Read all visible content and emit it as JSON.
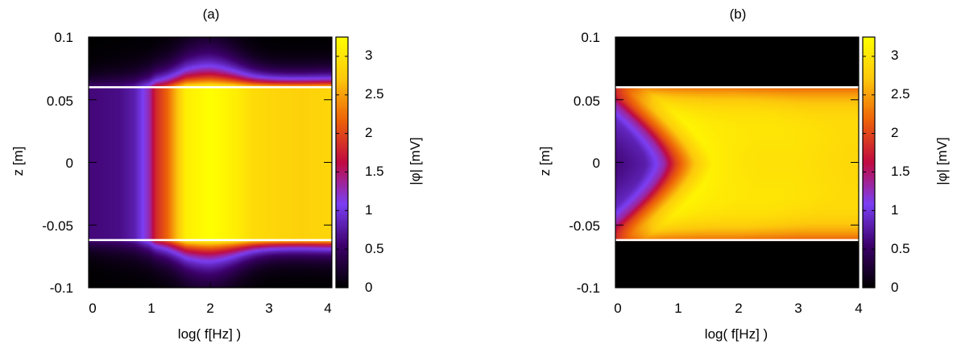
{
  "chart_data": [
    {
      "type": "heatmap",
      "title": "(a)",
      "xlabel": "log( f[Hz] )",
      "ylabel": "z [m]",
      "colorbar_label": "|φ| [mV]",
      "xlim": [
        0,
        4
      ],
      "ylim": [
        -0.1,
        0.1
      ],
      "clim": [
        0,
        3.25
      ],
      "x_ticks": [
        0,
        1,
        2,
        3,
        4
      ],
      "x_tick_labels": [
        "0",
        "1",
        "2",
        "3",
        "4"
      ],
      "y_ticks": [
        0.1,
        0.05,
        0,
        -0.05,
        -0.1
      ],
      "y_tick_labels": [
        "0.1",
        "0.05",
        "0",
        "-0.05",
        "-0.1"
      ],
      "colorbar_ticks": [
        3,
        2.5,
        2,
        1.5,
        1,
        0.5,
        0
      ],
      "colorbar_tick_labels": [
        "3",
        "2.5",
        "2",
        "1.5",
        "1",
        "0.5",
        "0"
      ],
      "boundary_lines_z": [
        0.06,
        -0.062
      ],
      "profile_inside_x": [
        0,
        0.5,
        0.75,
        1.0,
        1.1,
        1.3,
        1.6,
        2.0,
        2.4,
        2.7,
        3.0,
        3.5,
        4.0
      ],
      "profile_inside_values": [
        0.6,
        0.65,
        0.8,
        1.3,
        1.8,
        2.2,
        3.1,
        3.25,
        3.1,
        2.9,
        2.85,
        2.8,
        2.85
      ],
      "colormap": [
        "#000000",
        "#3c006a",
        "#7b3ff5",
        "#c10a41",
        "#ed6109",
        "#fdc80c",
        "#ffff00"
      ]
    },
    {
      "type": "heatmap",
      "title": "(b)",
      "xlabel": "log( f[Hz] )",
      "ylabel": "z [m]",
      "colorbar_label": "|φ| [mV]",
      "xlim": [
        0,
        4
      ],
      "ylim": [
        -0.1,
        0.1
      ],
      "clim": [
        0,
        3.25
      ],
      "x_ticks": [
        0,
        1,
        2,
        3,
        4
      ],
      "x_tick_labels": [
        "0",
        "1",
        "2",
        "3",
        "4"
      ],
      "y_ticks": [
        0.1,
        0.05,
        0,
        -0.05,
        -0.1
      ],
      "y_tick_labels": [
        "0.1",
        "0.05",
        "0",
        "-0.05",
        "-0.1"
      ],
      "colorbar_ticks": [
        3,
        2.5,
        2,
        1.5,
        1,
        0.5,
        0
      ],
      "colorbar_tick_labels": [
        "3",
        "2.5",
        "2",
        "1.5",
        "1",
        "0.5",
        "0"
      ],
      "boundary_lines_z": [
        0.06,
        -0.062
      ],
      "profile_center_x": [
        0,
        0.5,
        0.8,
        1.0,
        1.3,
        1.6,
        2.0,
        2.5,
        3.0,
        3.5,
        4.0
      ],
      "profile_center_values": [
        0.6,
        0.8,
        1.3,
        2.0,
        2.7,
        3.1,
        3.0,
        2.95,
        2.95,
        2.9,
        2.85
      ],
      "colormap": [
        "#000000",
        "#3c006a",
        "#7b3ff5",
        "#c10a41",
        "#ed6109",
        "#fdc80c",
        "#ffff00"
      ]
    }
  ]
}
